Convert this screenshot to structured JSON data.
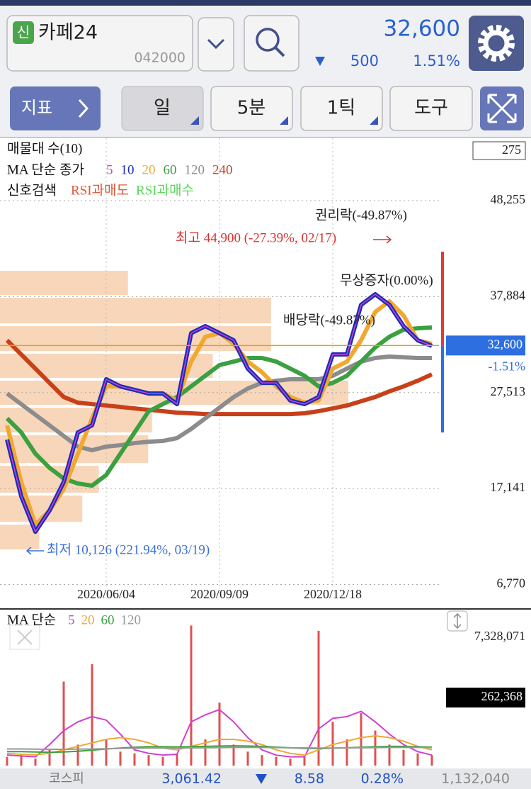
{
  "header": {
    "badge": "신",
    "name": "카페24",
    "code": "042000",
    "price": "32,600",
    "change": "500",
    "change_pct": "1.51%"
  },
  "toolbar": {
    "indicator": "지표",
    "periods": [
      "일",
      "5분",
      "1틱"
    ],
    "tools": "도구"
  },
  "chart_data": [
    {
      "type": "line",
      "profile_title": "매물대 수(10)",
      "ma_title": "MA 단순 종가",
      "signal_title": "신호검색",
      "signals": [
        {
          "name": "RSI과매도",
          "color": "#e0583a"
        },
        {
          "name": "RSI과매수",
          "color": "#5cd45c"
        }
      ],
      "categories": [
        null,
        null,
        null,
        null,
        null,
        null,
        null,
        "2020/06/04",
        null,
        null,
        null,
        null,
        null,
        null,
        null,
        "2020/09/09",
        null,
        null,
        null,
        null,
        null,
        null,
        null,
        "2020/12/18",
        null,
        null,
        null,
        null,
        null,
        null,
        null
      ],
      "series": [
        {
          "name": "240",
          "color": "#c8401a",
          "values": [
            33160,
            31630,
            30100,
            28560,
            27030,
            26420,
            26260,
            26110,
            25960,
            25800,
            25650,
            25500,
            25340,
            25270,
            25190,
            25190,
            25190,
            25190,
            25190,
            25190,
            25190,
            25270,
            25500,
            25800,
            26110,
            26570,
            27030,
            27640,
            28180,
            28790,
            29480
          ]
        },
        {
          "name": "120",
          "color": "#8c8c8c",
          "values": [
            27410,
            26260,
            25110,
            23970,
            22820,
            21670,
            21280,
            21670,
            21820,
            22050,
            22200,
            22280,
            22590,
            23580,
            24730,
            25880,
            27030,
            27950,
            28560,
            28790,
            28950,
            28950,
            28950,
            29330,
            30100,
            30860,
            31250,
            31400,
            31320,
            31250,
            31250
          ]
        },
        {
          "name": "60",
          "color": "#3aa040",
          "values": [
            24730,
            23200,
            20900,
            19370,
            18220,
            17680,
            17450,
            18600,
            20900,
            23200,
            25500,
            26260,
            27030,
            28180,
            29330,
            30480,
            30860,
            31250,
            31250,
            30860,
            30100,
            29330,
            28180,
            28560,
            29330,
            30860,
            32390,
            33540,
            34310,
            34460,
            34540
          ]
        },
        {
          "name": "20",
          "color": "#f0a830",
          "values": [
            23970,
            17840,
            13240,
            14770,
            17070,
            20900,
            24730,
            28180,
            28180,
            27800,
            27410,
            27410,
            26650,
            30860,
            33540,
            33930,
            32780,
            30860,
            29710,
            28180,
            27030,
            26420,
            26650,
            30100,
            30860,
            33160,
            36230,
            37380,
            35840,
            33160,
            32780
          ]
        },
        {
          "name": "10",
          "color": "#1a2db8",
          "values": [
            22430,
            16300,
            12470,
            14770,
            17840,
            23200,
            23970,
            28950,
            28180,
            27800,
            27410,
            27410,
            26260,
            33930,
            34690,
            33930,
            33160,
            30100,
            28560,
            28560,
            26650,
            26260,
            27030,
            31630,
            31630,
            36990,
            38140,
            36990,
            34690,
            33160,
            32550
          ]
        },
        {
          "name": "5",
          "color": "#d040d0",
          "values": [
            22430,
            16300,
            12470,
            14770,
            17840,
            23200,
            23970,
            28950,
            28180,
            27800,
            27410,
            27410,
            26260,
            33930,
            34690,
            33930,
            33160,
            30100,
            28560,
            28560,
            26650,
            26260,
            27030,
            31630,
            31630,
            36990,
            38140,
            36990,
            34690,
            33160,
            32550
          ]
        }
      ],
      "ylim": [
        6500,
        55000
      ],
      "yticks": [
        {
          "value": 6770,
          "label": "6,770"
        },
        {
          "value": 17141,
          "label": "17,141"
        },
        {
          "value": 27513,
          "label": "27,513"
        },
        {
          "value": 37884,
          "label": "37,884"
        },
        {
          "value": 48255,
          "label": "48,255"
        }
      ],
      "grid": true,
      "annotations": [
        "권리락(-49.87%)",
        "최고 44,900 (-27.39%, 02/17)",
        "무상증자(0.00%)",
        "배당락(-49.87%)",
        "최저 10,126 (221.94%, 03/19)"
      ],
      "last": {
        "value": 32600,
        "label": "32,600",
        "change_label": "-1.51%"
      },
      "range": {
        "high": 42740,
        "low": 23200
      },
      "profile": {
        "type": "bar",
        "bins": [
          40820,
          37910,
          34850,
          31860,
          28950,
          26030,
          23050,
          19750,
          16530,
          13390,
          10400
        ],
        "values": [
          101,
          214,
          214,
          168,
          275,
          120,
          117,
          78,
          65,
          31
        ],
        "xlim": [
          0,
          275
        ],
        "xticks": [
          275
        ],
        "color": "#f7cfae"
      }
    },
    {
      "type": "bar",
      "title": "MA 단순",
      "color": "#e05050",
      "values": [
        500000,
        600000,
        400000,
        900000,
        4800000,
        1200000,
        5800000,
        1500000,
        800000,
        700000,
        600000,
        500000,
        700000,
        8000000,
        1500000,
        3600000,
        1200000,
        800000,
        600000,
        500000,
        400000,
        500000,
        7700000,
        2500000,
        1500000,
        3000000,
        2000000,
        1200000,
        900000,
        700000,
        600000
      ],
      "series": [
        {
          "name": "5",
          "color": "#d040d0",
          "values": [
            600000,
            550000,
            500000,
            1200000,
            2000000,
            2500000,
            2800000,
            2600000,
            1800000,
            900000,
            700000,
            600000,
            650000,
            2500000,
            2900000,
            3200000,
            2500000,
            1600000,
            900000,
            600000,
            500000,
            500000,
            2100000,
            2700000,
            2800000,
            3100000,
            2500000,
            1800000,
            1200000,
            800000,
            600000
          ]
        },
        {
          "name": "20",
          "color": "#f0a830",
          "values": [
            700000,
            650000,
            620000,
            700000,
            900000,
            1100000,
            1300000,
            1500000,
            1600000,
            1500000,
            1300000,
            1000000,
            900000,
            1100000,
            1300000,
            1500000,
            1500000,
            1400000,
            1200000,
            900000,
            700000,
            600000,
            900000,
            1200000,
            1400000,
            1600000,
            1700000,
            1600000,
            1400000,
            1100000,
            900000
          ]
        },
        {
          "name": "60",
          "color": "#3aa040",
          "values": [
            800000,
            800000,
            780000,
            760000,
            780000,
            820000,
            880000,
            950000,
            1000000,
            1050000,
            1080000,
            1080000,
            1070000,
            1080000,
            1100000,
            1120000,
            1130000,
            1120000,
            1100000,
            1060000,
            1020000,
            980000,
            970000,
            990000,
            1020000,
            1050000,
            1080000,
            1100000,
            1100000,
            1080000,
            1060000
          ]
        },
        {
          "name": "120",
          "color": "#999999",
          "values": [
            950000,
            950000,
            940000,
            930000,
            930000,
            940000,
            950000,
            960000,
            980000,
            990000,
            1000000,
            1000000,
            1000000,
            1010000,
            1020000,
            1030000,
            1040000,
            1040000,
            1040000,
            1030000,
            1020000,
            1010000,
            1000000,
            1000000,
            1010000,
            1020000,
            1030000,
            1040000,
            1040000,
            1040000,
            1030000
          ]
        }
      ],
      "ylim": [
        0,
        8100000
      ],
      "yticks": [
        {
          "value": 7328071,
          "label": "7,328,071"
        }
      ],
      "last": {
        "value": 262368,
        "label": "262,368"
      }
    }
  ],
  "footer": {
    "index_name": "코스피",
    "index_value": "3,061.42",
    "change": "8.58",
    "change_pct": "0.28%",
    "volume": "1,132,040"
  }
}
